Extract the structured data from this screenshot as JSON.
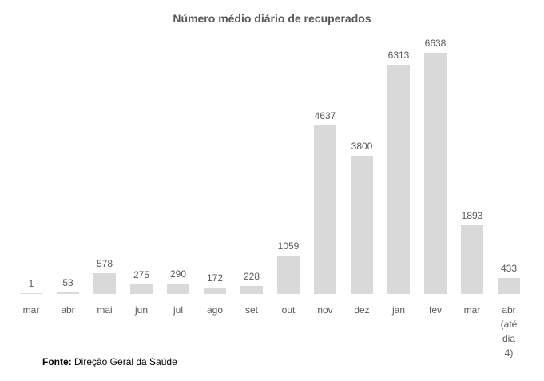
{
  "chart_data": {
    "type": "bar",
    "title": "Número médio diário de recuperados",
    "categories": [
      "mar",
      "abr",
      "mai",
      "jun",
      "jul",
      "ago",
      "set",
      "out",
      "nov",
      "dez",
      "jan",
      "fev",
      "mar",
      "abr\n(até dia\n4)"
    ],
    "values": [
      1,
      53,
      578,
      275,
      290,
      172,
      228,
      1059,
      4637,
      3800,
      6313,
      6638,
      1893,
      433
    ],
    "data_labels": true,
    "bar_color": "#d9d9d9",
    "label_color": "#595959",
    "ylim": [
      0,
      6700
    ],
    "grid": false,
    "legend": "none",
    "axis_lines": "none"
  },
  "footer": {
    "prefix": "Fonte:",
    "text": "Direção Geral da Saúde"
  }
}
